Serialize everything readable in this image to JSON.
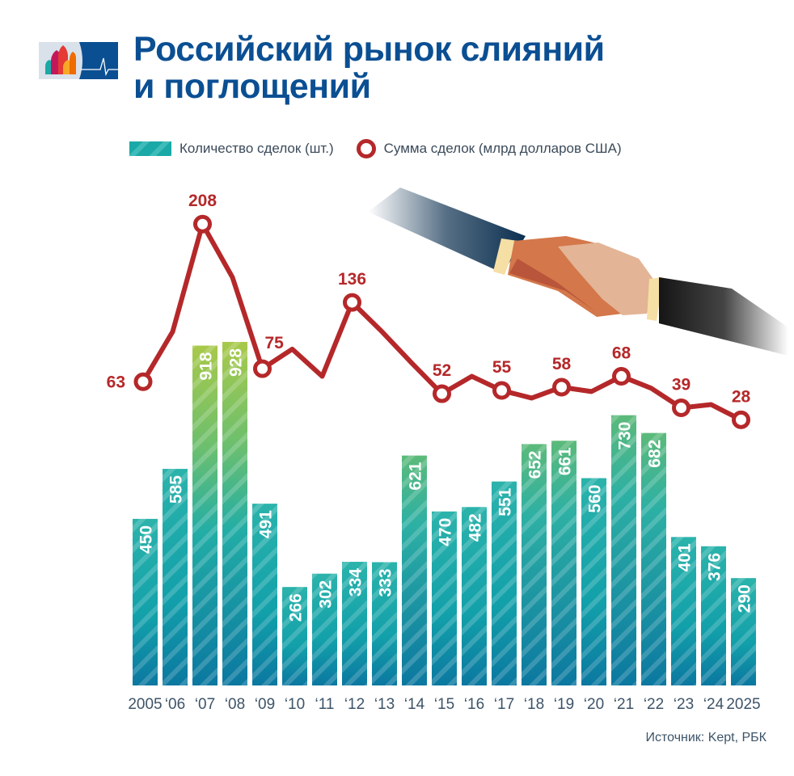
{
  "title": {
    "line1": "Российский рынок слияний",
    "line2": "и поглощений"
  },
  "legend": {
    "bars_label": "Количество сделок (шт.)",
    "line_label": "Сумма сделок (млрд долларов США)"
  },
  "source": "Источник: Kept, РБК",
  "colors": {
    "title": "#0b4f93",
    "line": "#b5282a",
    "bar_top": "#1aa9a6",
    "bar_bottom": "#0c7aa0",
    "bar_highlight": "#8cc63f",
    "axis_text": "#3d5468"
  },
  "chart_data": {
    "type": "bar+line",
    "title": "Российский рынок слияний и поглощений",
    "categories": [
      "2005",
      "‘06",
      "‘07",
      "‘08",
      "‘09",
      "‘10",
      "‘11",
      "‘12",
      "‘13",
      "‘14",
      "‘15",
      "‘16",
      "‘17",
      "‘18",
      "‘19",
      "‘20",
      "‘21",
      "‘22",
      "‘23",
      "‘24",
      "2025"
    ],
    "series": [
      {
        "name": "Количество сделок (шт.)",
        "type": "bar",
        "values": [
          450,
          585,
          918,
          928,
          491,
          266,
          302,
          334,
          333,
          621,
          470,
          482,
          551,
          652,
          661,
          560,
          730,
          682,
          401,
          376,
          290
        ]
      },
      {
        "name": "Сумма сделок (млрд долларов США)",
        "type": "line",
        "values": [
          63,
          109,
          208,
          159,
          75,
          93,
          68,
          136,
          109,
          80,
          52,
          68,
          55,
          48,
          58,
          54,
          68,
          57,
          39,
          42,
          28
        ],
        "labeled_points": {
          "2005": 63,
          "‘07": 208,
          "‘09": 75,
          "‘12": 136,
          "‘15": 52,
          "‘17": 55,
          "‘19": 58,
          "‘21": 68,
          "‘23": 39,
          "2025": 28
        }
      }
    ],
    "xlabel": "",
    "ylabel": "",
    "grid": false,
    "legend_position": "top"
  }
}
